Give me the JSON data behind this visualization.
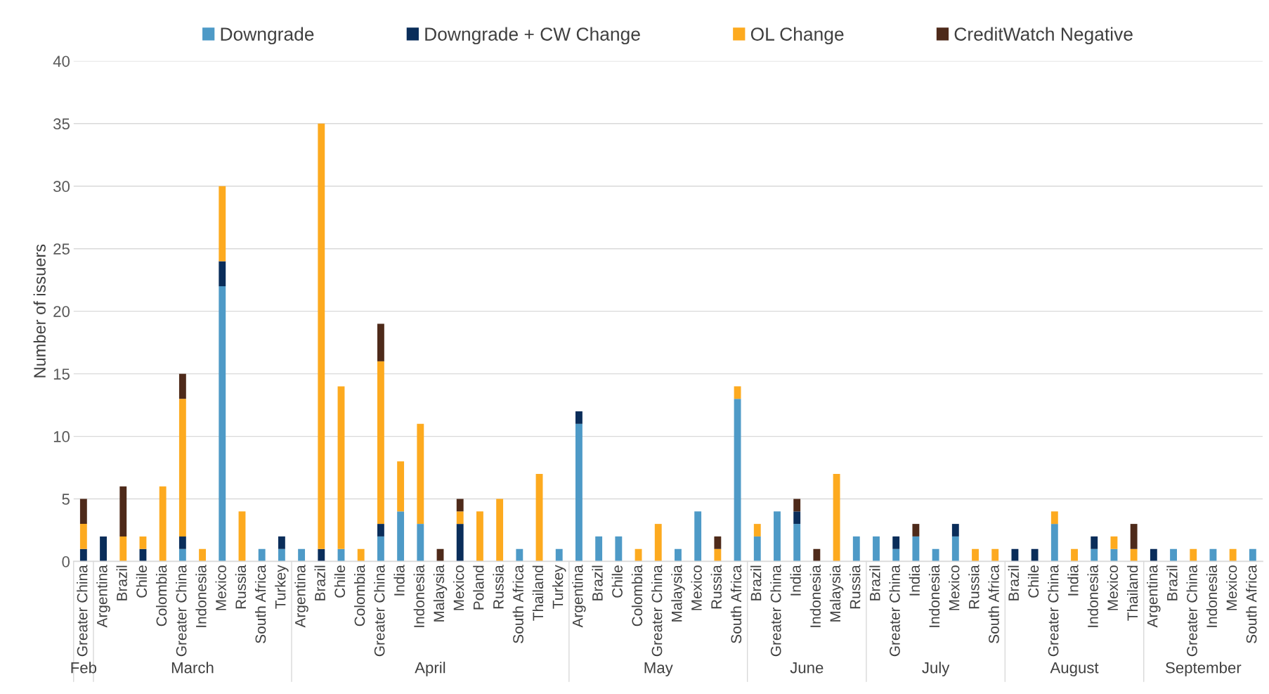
{
  "chart_data": {
    "type": "bar",
    "stacked": true,
    "ylabel": "Number of issuers",
    "categories": [
      "Greater China",
      "Argentina",
      "Brazil",
      "Chile",
      "Colombia",
      "Greater China",
      "Indonesia",
      "Mexico",
      "Russia",
      "South Africa",
      "Turkey",
      "Argentina",
      "Brazil",
      "Chile",
      "Colombia",
      "Greater China",
      "India",
      "Indonesia",
      "Malaysia",
      "Mexico",
      "Poland",
      "Russia",
      "South Africa",
      "Thailand",
      "Turkey",
      "Argentina",
      "Brazil",
      "Chile",
      "Colombia",
      "Greater China",
      "Malaysia",
      "Mexico",
      "Russia",
      "South Africa",
      "Brazil",
      "Greater China",
      "India",
      "Indonesia",
      "Malaysia",
      "Russia",
      "Brazil",
      "Greater China",
      "India",
      "Indonesia",
      "Mexico",
      "Russia",
      "South Africa",
      "Brazil",
      "Chile",
      "Greater China",
      "India",
      "Indonesia",
      "Mexico",
      "Thailand",
      "Argentina",
      "Brazil",
      "Greater China",
      "Indonesia",
      "Mexico",
      "South Africa"
    ],
    "series": [
      {
        "name": "Downgrade",
        "color": "#4e9ac7",
        "values": [
          0,
          0,
          0,
          0,
          0,
          1,
          0,
          22,
          0,
          1,
          1,
          1,
          0,
          1,
          0,
          2,
          4,
          3,
          0,
          0,
          0,
          0,
          1,
          0,
          1,
          11,
          2,
          2,
          0,
          0,
          1,
          4,
          0,
          13,
          2,
          4,
          3,
          0,
          0,
          2,
          2,
          1,
          2,
          1,
          2,
          0,
          0,
          0,
          0,
          3,
          0,
          1,
          1,
          0,
          0,
          1,
          0,
          1,
          0,
          1
        ]
      },
      {
        "name": "Downgrade + CW Change",
        "color": "#0a2d5a",
        "values": [
          1,
          2,
          0,
          1,
          0,
          1,
          0,
          2,
          0,
          0,
          1,
          0,
          1,
          0,
          0,
          1,
          0,
          0,
          0,
          3,
          0,
          0,
          0,
          0,
          0,
          1,
          0,
          0,
          0,
          0,
          0,
          0,
          0,
          0,
          0,
          0,
          1,
          0,
          0,
          0,
          0,
          1,
          0,
          0,
          1,
          0,
          0,
          1,
          1,
          0,
          0,
          1,
          0,
          0,
          1,
          0,
          0,
          0,
          0,
          0
        ]
      },
      {
        "name": "OL Change",
        "color": "#fdaa1f",
        "values": [
          2,
          0,
          2,
          1,
          6,
          11,
          1,
          6,
          4,
          0,
          0,
          0,
          34,
          13,
          1,
          13,
          4,
          8,
          0,
          1,
          4,
          5,
          0,
          7,
          0,
          0,
          0,
          0,
          1,
          3,
          0,
          0,
          1,
          1,
          1,
          0,
          0,
          0,
          7,
          0,
          0,
          0,
          0,
          0,
          0,
          1,
          1,
          0,
          0,
          1,
          1,
          0,
          1,
          1,
          0,
          0,
          1,
          0,
          1,
          0
        ]
      },
      {
        "name": "CreditWatch Negative",
        "color": "#4e2a1a",
        "values": [
          2,
          0,
          4,
          0,
          0,
          2,
          0,
          0,
          0,
          0,
          0,
          0,
          0,
          0,
          0,
          3,
          0,
          0,
          1,
          1,
          0,
          0,
          0,
          0,
          0,
          0,
          0,
          0,
          0,
          0,
          0,
          0,
          1,
          0,
          0,
          0,
          1,
          1,
          0,
          0,
          0,
          0,
          1,
          0,
          0,
          0,
          0,
          0,
          0,
          0,
          0,
          0,
          0,
          2,
          0,
          0,
          0,
          0,
          0,
          0
        ]
      }
    ],
    "annotations": [
      "Feb",
      "March",
      "April",
      "May",
      "June",
      "July",
      "August",
      "September"
    ],
    "ylim": [
      0,
      40
    ],
    "yticks": [
      0,
      5,
      10,
      15,
      20,
      25,
      30,
      35,
      40
    ],
    "grid": "y",
    "legend": "top"
  }
}
